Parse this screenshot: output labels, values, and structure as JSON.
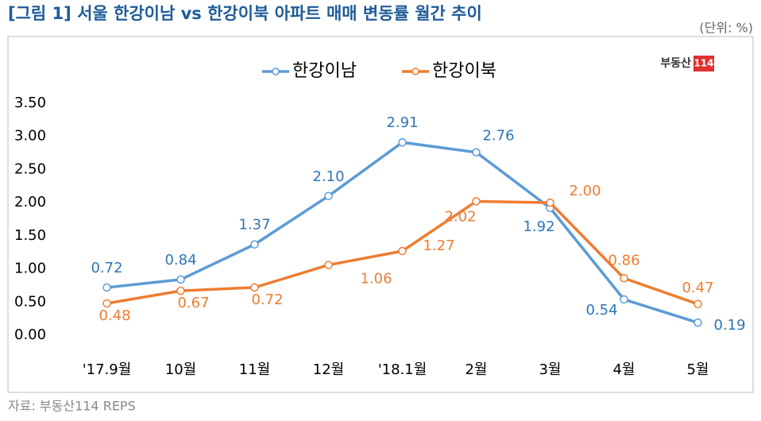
{
  "title": "[그림 1] 서울 한강이남 vs 한강이북 아파트 매매 변동률 월간 추이",
  "unit": "(단위: %)",
  "source": "자료: 부동산114 REPS",
  "logo": {
    "text": "부동산",
    "badge": "114"
  },
  "chart_data": {
    "type": "line",
    "categories": [
      "'17.9월",
      "10월",
      "11월",
      "12월",
      "'18.1월",
      "2월",
      "3월",
      "4월",
      "5월"
    ],
    "series": [
      {
        "name": "한강이남",
        "color": "#5b9bd5",
        "values": [
          0.72,
          0.84,
          1.37,
          2.1,
          2.91,
          2.76,
          1.92,
          0.54,
          0.19
        ],
        "value_labels": [
          "0.72",
          "0.84",
          "1.37",
          "2.10",
          "2.91",
          "2.76",
          "1.92",
          "0.54",
          "0.19"
        ]
      },
      {
        "name": "한강이북",
        "color": "#ed7d31",
        "values": [
          0.48,
          0.67,
          0.72,
          1.06,
          1.27,
          2.02,
          2.0,
          0.86,
          0.47
        ],
        "value_labels": [
          "0.48",
          "0.67",
          "0.72",
          "1.06",
          "1.27",
          "2.02",
          "2.00",
          "0.86",
          "0.47"
        ]
      }
    ],
    "ylim": [
      0,
      3.5
    ],
    "yticks": [
      {
        "value": 0,
        "label": "0.00"
      },
      {
        "value": 0.5,
        "label": "0.50"
      },
      {
        "value": 1,
        "label": "1.00"
      },
      {
        "value": 1.5,
        "label": "1.50"
      },
      {
        "value": 2,
        "label": "2.00"
      },
      {
        "value": 2.5,
        "label": "2.50"
      },
      {
        "value": 3,
        "label": "3.00"
      },
      {
        "value": 3.5,
        "label": "3.50"
      }
    ],
    "grid": false,
    "legend": "top"
  }
}
